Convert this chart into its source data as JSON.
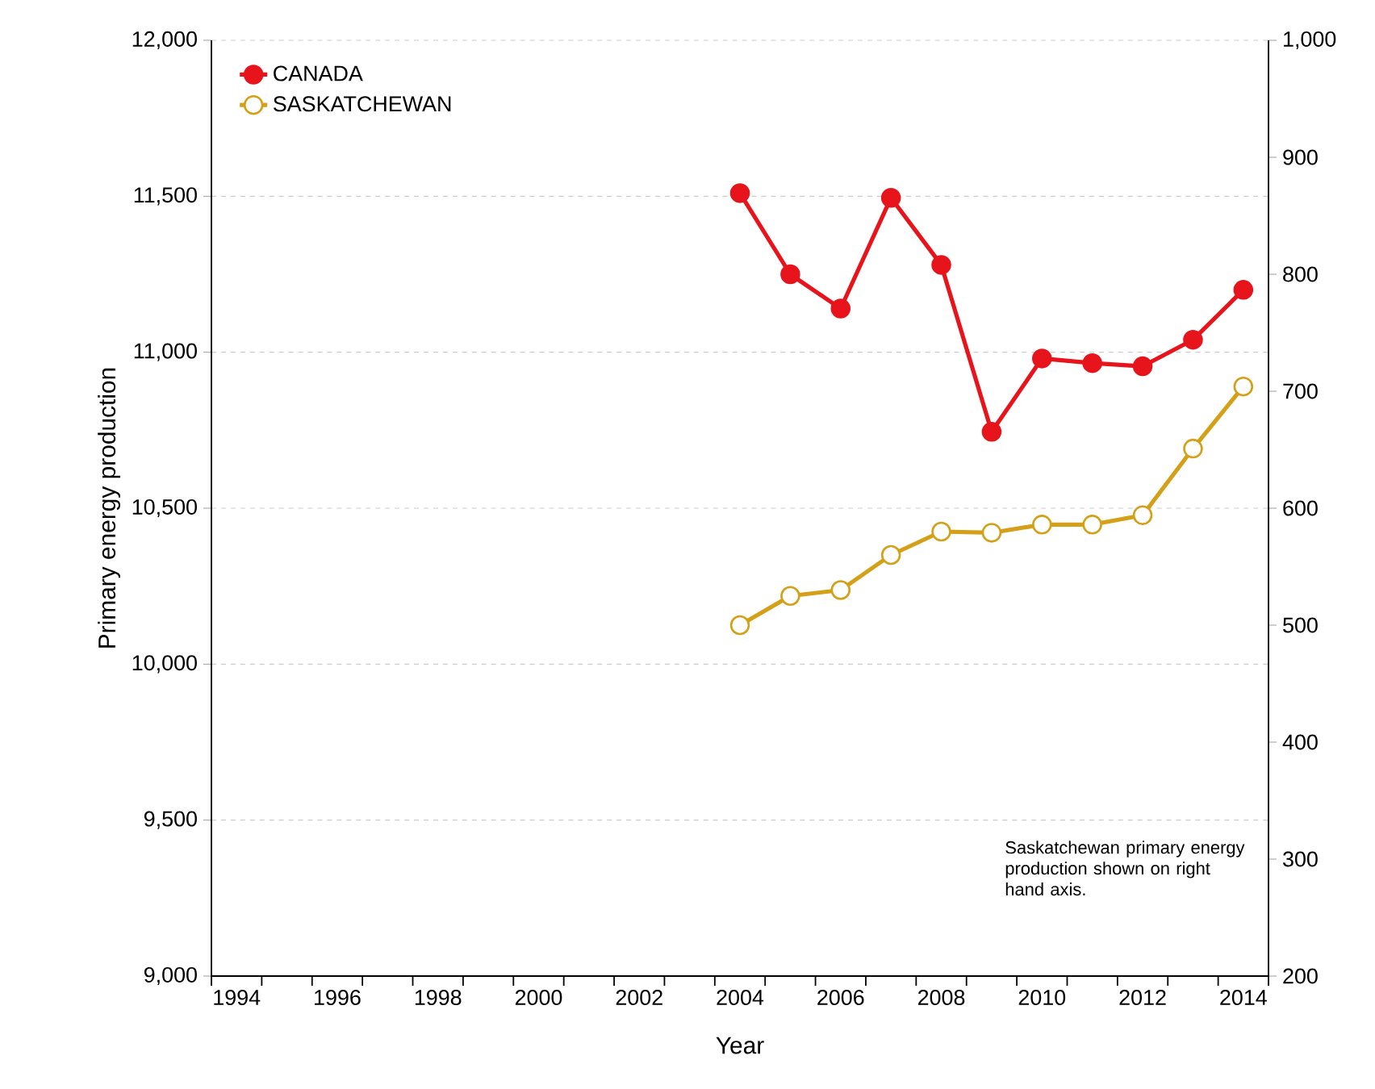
{
  "chart_data": {
    "type": "line",
    "xlabel": "Year",
    "ylabel": "Primary energy production",
    "x": [
      2004,
      2005,
      2006,
      2007,
      2008,
      2009,
      2010,
      2011,
      2012,
      2013,
      2014
    ],
    "series": [
      {
        "name": "CANADA",
        "color": "#e8141b",
        "values": [
          11510,
          11250,
          11140,
          11495,
          11280,
          10745,
          10980,
          10965,
          10955,
          11040,
          11200
        ]
      },
      {
        "name": "SASKATCHEWAN",
        "color": "#d4a017",
        "axis": "y2",
        "values": [
          500,
          525,
          530,
          560,
          580,
          579,
          586,
          586,
          594,
          651,
          704
        ]
      }
    ],
    "xlim": [
      1993.5,
      2014.5
    ],
    "xticks": [
      {
        "value": 1993.5,
        "label": null
      },
      1994,
      {
        "value": 1994.5,
        "label": null
      },
      {
        "value": 1995.5,
        "label": null
      },
      1996,
      {
        "value": 1996.5,
        "label": null
      },
      {
        "value": 1997.5,
        "label": null
      },
      1998,
      {
        "value": 1998.5,
        "label": null
      },
      {
        "value": 1999.5,
        "label": null
      },
      2000,
      {
        "value": 2000.5,
        "label": null
      },
      {
        "value": 2001.5,
        "label": null
      },
      2002,
      {
        "value": 2002.5,
        "label": null
      },
      {
        "value": 2003.5,
        "label": null
      },
      2004,
      {
        "value": 2004.5,
        "label": null
      },
      {
        "value": 2005.5,
        "label": null
      },
      2006,
      {
        "value": 2006.5,
        "label": null
      },
      {
        "value": 2007.5,
        "label": null
      },
      2008,
      {
        "value": 2008.5,
        "label": null
      },
      {
        "value": 2009.5,
        "label": null
      },
      2010,
      {
        "value": 2010.5,
        "label": null
      },
      {
        "value": 2011.5,
        "label": null
      },
      2012,
      {
        "value": 2012.5,
        "label": null
      },
      {
        "value": 2013.5,
        "label": null
      },
      2014,
      {
        "value": 2014.5,
        "label": null
      }
    ],
    "ylim": [
      9000,
      12000
    ],
    "yticks": [
      {
        "value": 9000,
        "label": "9,000"
      },
      {
        "value": 9500,
        "label": "9,500"
      },
      {
        "value": 10000,
        "label": "10,000"
      },
      {
        "value": 10500,
        "label": "10,500"
      },
      {
        "value": 11000,
        "label": "11,000"
      },
      {
        "value": 11500,
        "label": "11,500"
      },
      {
        "value": 12000,
        "label": "12,000"
      }
    ],
    "y2lim": [
      200,
      1000
    ],
    "y2ticks": [
      200,
      300,
      400,
      500,
      600,
      700,
      800,
      900,
      {
        "value": 1000,
        "label": "1,000"
      }
    ],
    "grid": "y",
    "legend": "top left",
    "marker": "circle",
    "line_style": "solid",
    "annotations": [
      "Saskatchewan primary energy production shown on right hand axis."
    ]
  }
}
